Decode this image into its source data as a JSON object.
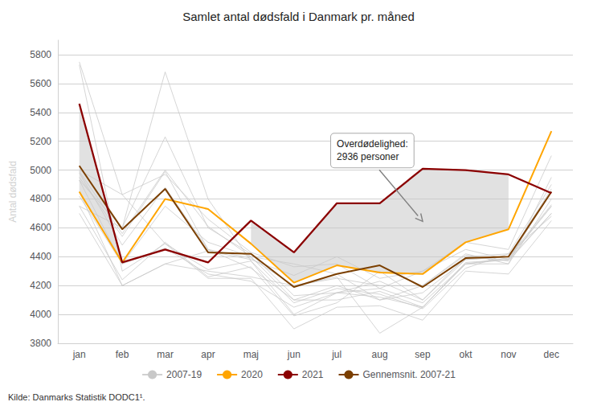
{
  "chart_data": {
    "type": "line",
    "title": "Samlet antal dødsfald i Danmark pr. måned",
    "ylabel": "Antal dødsfald",
    "source": "Kilde: Danmarks Statistik DODC1¹.",
    "categories": [
      "jan",
      "feb",
      "mar",
      "apr",
      "maj",
      "jun",
      "jul",
      "aug",
      "sep",
      "okt",
      "nov",
      "dec"
    ],
    "ylim": [
      3800,
      5900
    ],
    "yticks": [
      3800,
      4000,
      4200,
      4400,
      4600,
      4800,
      5000,
      5200,
      5400,
      5600,
      5800
    ],
    "grid": true,
    "legend": "bottom",
    "series": [
      {
        "name": "2007-19",
        "color": "#C8C8C8",
        "values": [
          4930,
          4350,
          4460,
          4280,
          4230,
          4050,
          4150,
          4180,
          4080,
          4350,
          4380,
          4700
        ]
      },
      {
        "name": "2007-19",
        "color": "#C8C8C8",
        "values": [
          4750,
          4240,
          4500,
          4260,
          4330,
          3990,
          4080,
          4300,
          4100,
          4380,
          4400,
          4760
        ]
      },
      {
        "name": "2007-19",
        "color": "#C8C8C8",
        "values": [
          5750,
          4830,
          4490,
          4310,
          4370,
          4080,
          4180,
          4140,
          4040,
          4320,
          4420,
          4680
        ]
      },
      {
        "name": "2007-19",
        "color": "#C8C8C8",
        "values": [
          4750,
          4600,
          5680,
          4800,
          4370,
          4000,
          4150,
          4120,
          4050,
          4350,
          4390,
          4750
        ]
      },
      {
        "name": "2007-19",
        "color": "#C8C8C8",
        "values": [
          5730,
          4300,
          4490,
          4250,
          4250,
          3900,
          4050,
          4060,
          3960,
          4300,
          4280,
          4650
        ]
      },
      {
        "name": "2007-19",
        "color": "#C8C8C8",
        "values": [
          4930,
          4600,
          5230,
          4600,
          4420,
          4130,
          4150,
          4230,
          4100,
          4400,
          4420,
          4900
        ]
      },
      {
        "name": "2007-19",
        "color": "#C8C8C8",
        "values": [
          4820,
          4350,
          4750,
          4500,
          4400,
          4100,
          4100,
          4160,
          4050,
          4350,
          4350,
          4800
        ]
      },
      {
        "name": "2007-19",
        "color": "#C8C8C8",
        "values": [
          4950,
          4540,
          4990,
          4450,
          4390,
          4200,
          4260,
          3870,
          4050,
          4360,
          4380,
          4750
        ]
      },
      {
        "name": "2007-19",
        "color": "#C8C8C8",
        "values": [
          5000,
          4830,
          4970,
          4660,
          4430,
          4330,
          4350,
          4180,
          4300,
          4500,
          4450,
          5100
        ]
      },
      {
        "name": "2007-19",
        "color": "#C8C8C8",
        "values": [
          4990,
          4560,
          5000,
          4610,
          4400,
          4350,
          4280,
          4100,
          4200,
          4420,
          4350,
          4950
        ]
      },
      {
        "name": "2007-19",
        "color": "#C8C8C8",
        "values": [
          4980,
          4480,
          4880,
          4450,
          4320,
          4100,
          4200,
          4100,
          4150,
          4380,
          4400,
          4870
        ]
      },
      {
        "name": "2007-19",
        "color": "#C8C8C8",
        "values": [
          4850,
          4200,
          4350,
          4440,
          4380,
          4270,
          4400,
          4250,
          4300,
          4450,
          4380,
          4850
        ]
      },
      {
        "name": "2007-19",
        "color": "#C8C8C8",
        "values": [
          4700,
          4200,
          4350,
          4300,
          4260,
          4200,
          4250,
          4200,
          4200,
          4410,
          4370,
          4700
        ]
      },
      {
        "name": "2020",
        "color": "#FFA500",
        "values": [
          4850,
          4360,
          4800,
          4730,
          4490,
          4220,
          4340,
          4290,
          4280,
          4500,
          4590,
          5270
        ]
      },
      {
        "name": "2021",
        "color": "#8B0000",
        "values": [
          5460,
          4360,
          4450,
          4360,
          4650,
          4430,
          4770,
          4770,
          5010,
          5000,
          4970,
          4840
        ]
      },
      {
        "name": "Gennemsnit. 2007-21",
        "color": "#7B3F00",
        "values": [
          5030,
          4590,
          4870,
          4430,
          4420,
          4190,
          4280,
          4340,
          4190,
          4390,
          4400,
          4850
        ]
      }
    ],
    "annotation": {
      "text": "Overdødelighed:\n2936 personer",
      "color": "#808080"
    }
  }
}
